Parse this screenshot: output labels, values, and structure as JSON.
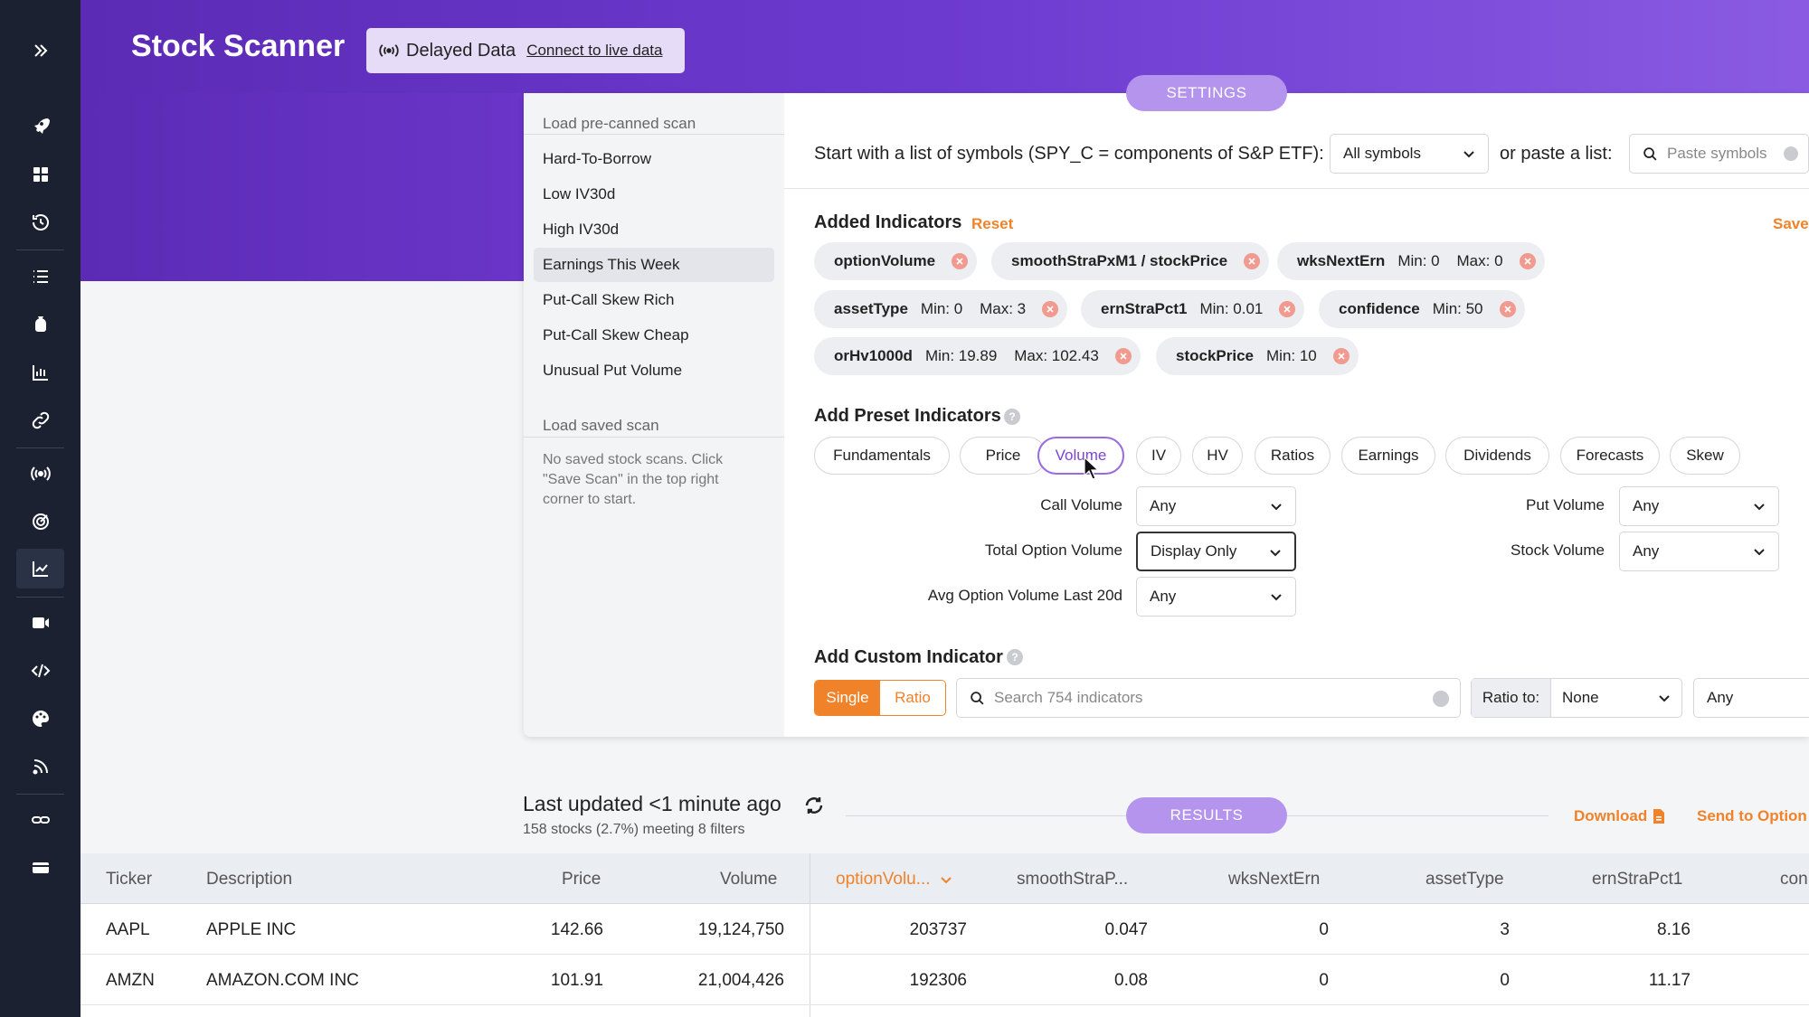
{
  "app": {
    "title": "Stock Scanner",
    "delayed_label": "Delayed Data",
    "live_link": "Connect to live data"
  },
  "sidebar": {
    "icons": [
      "expand-icon",
      "rocket-icon",
      "dashboard-icon",
      "history-icon",
      "list-icon",
      "money-bag-icon",
      "bar-chart-icon",
      "link-icon",
      "broadcast-icon",
      "target-icon",
      "line-chart-icon",
      "video-icon",
      "code-icon",
      "palette-icon",
      "rss-icon",
      "chain-icon",
      "card-icon"
    ]
  },
  "scans": {
    "precanned_heading": "Load pre-canned scan",
    "items": [
      "Hard-To-Borrow",
      "Low IV30d",
      "High IV30d",
      "Earnings This Week",
      "Put-Call Skew Rich",
      "Put-Call Skew Cheap",
      "Unusual Put Volume"
    ],
    "selected": "Earnings This Week",
    "saved_heading": "Load saved scan",
    "saved_note": "No saved stock scans. Click \"Save Scan\" in the top right corner to start."
  },
  "settings": {
    "tab_label": "SETTINGS",
    "symbols_prompt": "Start with a list of symbols (SPY_C = components of S&P ETF):",
    "symbols_select": "All symbols",
    "paste_prompt": "or paste a list:",
    "paste_placeholder": "Paste symbols",
    "added_title": "Added Indicators",
    "reset_label": "Reset",
    "save_label": "Save",
    "chips": [
      {
        "name": "optionVolume",
        "extra": ""
      },
      {
        "name": "smoothStraPxM1 / stockPrice",
        "extra": ""
      },
      {
        "name": "wksNextErn",
        "extra": "Min: 0    Max: 0"
      },
      {
        "name": "assetType",
        "extra": "Min: 0    Max: 3"
      },
      {
        "name": "ernStraPct1",
        "extra": "Min: 0.01"
      },
      {
        "name": "confidence",
        "extra": "Min: 50"
      },
      {
        "name": "orHv1000d",
        "extra": "Min: 19.89    Max: 102.43"
      },
      {
        "name": "stockPrice",
        "extra": "Min: 10"
      }
    ],
    "preset_title": "Add Preset Indicators",
    "presets": [
      "Fundamentals",
      "Price",
      "Volume",
      "IV",
      "HV",
      "Ratios",
      "Earnings",
      "Dividends",
      "Forecasts",
      "Skew"
    ],
    "active_preset": "Volume",
    "volume_fields": {
      "call_volume": {
        "label": "Call Volume",
        "value": "Any"
      },
      "total_option_volume": {
        "label": "Total Option Volume",
        "value": "Display Only"
      },
      "avg_option_volume": {
        "label": "Avg Option Volume Last 20d",
        "value": "Any"
      },
      "put_volume": {
        "label": "Put Volume",
        "value": "Any"
      },
      "stock_volume": {
        "label": "Stock Volume",
        "value": "Any"
      }
    },
    "custom_title": "Add Custom Indicator",
    "toggle_single": "Single",
    "toggle_ratio": "Ratio",
    "search_placeholder": "Search 754 indicators",
    "ratio_to_label": "Ratio to:",
    "ratio_to_value": "None",
    "any_value": "Any"
  },
  "results": {
    "last_updated": "Last updated <1 minute ago",
    "meeting": "158 stocks (2.7%) meeting 8 filters",
    "tab_label": "RESULTS",
    "download_label": "Download",
    "send_label": "Send to Option",
    "columns": [
      "Ticker",
      "Description",
      "Price",
      "Volume",
      "optionVolu...",
      "smoothStraP...",
      "wksNextErn",
      "assetType",
      "ernStraPct1",
      "con"
    ],
    "rows": [
      [
        "AAPL",
        "APPLE INC",
        "142.66",
        "19,124,750",
        "203737",
        "0.047",
        "0",
        "3",
        "8.16"
      ],
      [
        "AMZN",
        "AMAZON.COM INC",
        "101.91",
        "21,004,426",
        "192306",
        "0.08",
        "0",
        "0",
        "11.17"
      ]
    ]
  },
  "colors": {
    "accent_purple": "#6d3ad0",
    "accent_orange": "#f0822a",
    "sidebar_bg": "#1b2130"
  }
}
